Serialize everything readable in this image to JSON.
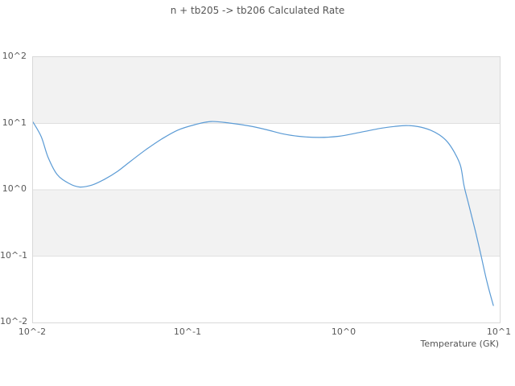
{
  "title": "n + tb205 -> tb206 Calculated Rate",
  "x_axis_label": "Temperature (GK)",
  "colors": {
    "line": "#5b9bd5",
    "band": "#f2f2f2",
    "gridline": "#e0e0e0",
    "frame": "#d9d9d9",
    "text": "#555555",
    "tick_text": "#595959",
    "background": "#ffffff"
  },
  "chart_data": {
    "type": "line",
    "title": "n + tb205 -> tb206 Calculated Rate",
    "xlabel": "Temperature (GK)",
    "ylabel": "",
    "x_scale": "log",
    "y_scale": "log",
    "xlim": [
      0.01,
      10
    ],
    "ylim": [
      0.01,
      100
    ],
    "x_tick_labels": [
      "10^-2",
      "10^-1",
      "10^0",
      "10^1"
    ],
    "x_tick_values": [
      0.01,
      0.1,
      1,
      10
    ],
    "y_tick_labels": [
      "10^2",
      "10^1",
      "10^0",
      "10^-1",
      "10^-2"
    ],
    "y_tick_values": [
      100,
      10,
      1,
      0.1,
      0.01
    ],
    "grid": "alternating-horizontal-bands",
    "legend": "none",
    "series": [
      {
        "name": "calculated rate",
        "color": "#5b9bd5",
        "x": [
          0.01,
          0.0113,
          0.0125,
          0.0143,
          0.017,
          0.02,
          0.024,
          0.029,
          0.035,
          0.042,
          0.053,
          0.067,
          0.085,
          0.11,
          0.14,
          0.185,
          0.25,
          0.32,
          0.4,
          0.51,
          0.69,
          0.92,
          1.25,
          1.7,
          2.1,
          2.5,
          3.0,
          3.6,
          4.1,
          4.6,
          5.1,
          5.6,
          5.9,
          6.3,
          7.0,
          7.6,
          8.3,
          9.1
        ],
        "y": [
          10.5,
          6.3,
          3.1,
          1.7,
          1.25,
          1.1,
          1.18,
          1.45,
          1.9,
          2.65,
          4.0,
          5.8,
          7.9,
          9.6,
          10.7,
          10.1,
          9.1,
          8.0,
          7.0,
          6.4,
          6.15,
          6.4,
          7.3,
          8.4,
          9.0,
          9.3,
          8.95,
          7.9,
          6.7,
          5.3,
          3.7,
          2.3,
          1.15,
          0.62,
          0.23,
          0.1,
          0.04,
          0.018
        ]
      }
    ]
  }
}
